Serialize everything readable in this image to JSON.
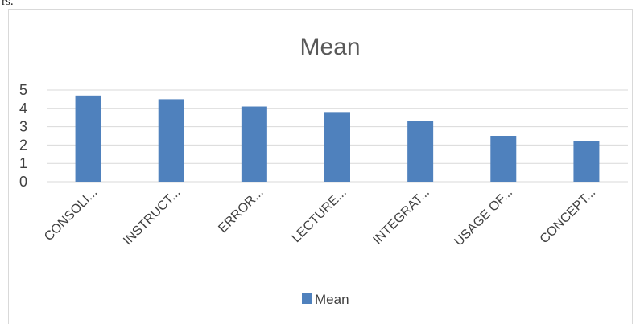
{
  "document": {
    "fragment_text": "rs."
  },
  "chart_data": {
    "type": "bar",
    "title": "Mean",
    "categories": [
      "CONSOLI...",
      "INSTRUCT...",
      "ERROR...",
      "LECTURE...",
      "INTEGRAT...",
      "USAGE OF...",
      "CONCEPT..."
    ],
    "series": [
      {
        "name": "Mean",
        "values": [
          4.7,
          4.5,
          4.1,
          3.8,
          3.3,
          2.5,
          2.2
        ],
        "color": "#4f81bd"
      }
    ],
    "yticks": [
      0,
      1,
      2,
      3,
      4,
      5
    ],
    "ylim": [
      0,
      5
    ],
    "grid": true,
    "legend_position": "bottom",
    "xlabel": "",
    "ylabel": ""
  }
}
